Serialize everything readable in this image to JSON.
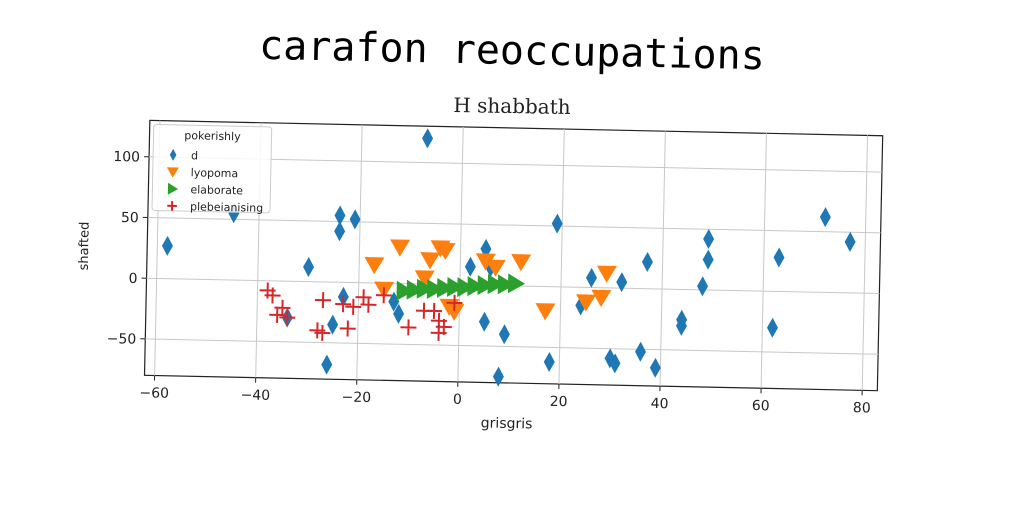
{
  "chart_data": {
    "type": "scatter",
    "title": "carafon reoccupations",
    "subtitle": "H shabbath",
    "xlabel": "grisgris",
    "ylabel": "shafted",
    "xlim": [
      -62,
      83
    ],
    "ylim": [
      -80,
      130
    ],
    "xticks": [
      -60,
      -40,
      -20,
      0,
      20,
      40,
      60,
      80
    ],
    "yticks": [
      -50,
      0,
      50,
      100
    ],
    "grid": true,
    "legend": {
      "title": "pokerishly",
      "position": "top-left"
    },
    "series": [
      {
        "name": "d",
        "marker": "diamond",
        "color": "#1f77b4",
        "points": [
          [
            -58,
            27
          ],
          [
            -45,
            55
          ],
          [
            -30,
            12
          ],
          [
            -24,
            55
          ],
          [
            -24,
            42
          ],
          [
            -21,
            52
          ],
          [
            -23,
            -12
          ],
          [
            -25,
            -35
          ],
          [
            -26,
            -68
          ],
          [
            -34,
            -30
          ],
          [
            -13,
            -15
          ],
          [
            -12,
            -25
          ],
          [
            -7,
            120
          ],
          [
            2,
            15
          ],
          [
            5,
            30
          ],
          [
            6,
            15
          ],
          [
            5,
            -30
          ],
          [
            9,
            -40
          ],
          [
            8,
            -75
          ],
          [
            19,
            52
          ],
          [
            18,
            -62
          ],
          [
            24,
            -15
          ],
          [
            26,
            8
          ],
          [
            30,
            -58
          ],
          [
            31,
            -62
          ],
          [
            32,
            5
          ],
          [
            37,
            22
          ],
          [
            36,
            -52
          ],
          [
            39,
            -65
          ],
          [
            44,
            -25
          ],
          [
            44,
            -30
          ],
          [
            48,
            3
          ],
          [
            49,
            42
          ],
          [
            49,
            25
          ],
          [
            62,
            -30
          ],
          [
            63,
            28
          ],
          [
            72,
            62
          ],
          [
            77,
            42
          ]
        ]
      },
      {
        "name": "lyopoma",
        "marker": "triangle-down",
        "color": "#ff7f0e",
        "points": [
          [
            -17,
            15
          ],
          [
            -15,
            -5
          ],
          [
            -12,
            30
          ],
          [
            -7,
            5
          ],
          [
            -6,
            20
          ],
          [
            -4,
            30
          ],
          [
            -3,
            28
          ],
          [
            -2,
            -18
          ],
          [
            -1,
            -22
          ],
          [
            5,
            20
          ],
          [
            7,
            15
          ],
          [
            12,
            20
          ],
          [
            17,
            -20
          ],
          [
            25,
            -12
          ],
          [
            28,
            -8
          ],
          [
            29,
            12
          ]
        ]
      },
      {
        "name": "elaborate",
        "marker": "triangle-right",
        "color": "#2ca02c",
        "points": [
          [
            -11,
            -6
          ],
          [
            -9,
            -5
          ],
          [
            -7,
            -4
          ],
          [
            -5,
            -4
          ],
          [
            -3,
            -3
          ],
          [
            -1,
            -2
          ],
          [
            1,
            -2
          ],
          [
            3,
            -1
          ],
          [
            5,
            0
          ],
          [
            7,
            1
          ],
          [
            9,
            1
          ],
          [
            11,
            2
          ]
        ]
      },
      {
        "name": "plebeianising",
        "marker": "plus",
        "color": "#d62728",
        "points": [
          [
            -38,
            -8
          ],
          [
            -37,
            -12
          ],
          [
            -36,
            -28
          ],
          [
            -35,
            -22
          ],
          [
            -34,
            -30
          ],
          [
            -28,
            -40
          ],
          [
            -27,
            -42
          ],
          [
            -27,
            -15
          ],
          [
            -23,
            -18
          ],
          [
            -22,
            -38
          ],
          [
            -21,
            -20
          ],
          [
            -19,
            -12
          ],
          [
            -18,
            -18
          ],
          [
            -15,
            -10
          ],
          [
            -10,
            -36
          ],
          [
            -7,
            -22
          ],
          [
            -5,
            -22
          ],
          [
            -4,
            -40
          ],
          [
            -4,
            -30
          ],
          [
            -3,
            -35
          ],
          [
            -1,
            -15
          ]
        ]
      }
    ]
  }
}
